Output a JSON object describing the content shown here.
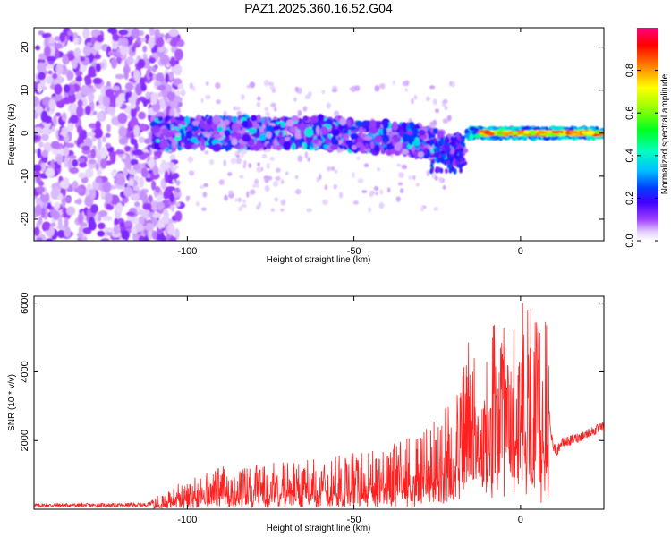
{
  "chart_data": [
    {
      "type": "heatmap",
      "title": "PAZ1.2025.360.16.52.G04",
      "xlabel": "Height of straight line (km)",
      "ylabel": "Frequency (Hz)",
      "xlim": [
        -146,
        25
      ],
      "ylim": [
        -25,
        24.5
      ],
      "xticks": [
        -100,
        -50,
        0
      ],
      "xtick_labels": [
        "-100",
        "-50",
        "0"
      ],
      "yticks": [
        -20,
        -10,
        0,
        10,
        20
      ],
      "ytick_labels": [
        "-20",
        "-10",
        "0",
        "10",
        "20"
      ],
      "grid": false,
      "colorbar": {
        "label": "Normalized spectral amplitude",
        "range": [
          0,
          1
        ],
        "ticks": [
          0.0,
          0.2,
          0.4,
          0.6,
          0.8
        ],
        "tick_labels": [
          "0.0",
          "0.2",
          "0.4",
          "0.6",
          "0.8"
        ],
        "colormap": [
          "#ffffff",
          "#d6b8ff",
          "#8000ff",
          "#0000ff",
          "#00e0ff",
          "#00ff40",
          "#ffff00",
          "#ff8000",
          "#ff0000",
          "#ff0080"
        ]
      },
      "regions": [
        {
          "name": "noise",
          "x_range": [
            -146,
            -105
          ],
          "freq_range": [
            -25,
            24
          ],
          "amplitude": 0.05
        },
        {
          "name": "ionospheric",
          "x_range": [
            -110,
            -17
          ],
          "freq_center": [
            0,
            -4
          ],
          "amplitude": 0.25
        },
        {
          "name": "troposphere-strong",
          "x_range": [
            -15,
            25
          ],
          "freq_center": [
            0,
            0
          ],
          "amplitude": 0.9
        }
      ]
    },
    {
      "type": "line",
      "title": "",
      "xlabel": "Height of straight line (km)",
      "ylabel": "SNR (10 * v/v)",
      "xlim": [
        -146,
        25
      ],
      "ylim": [
        0,
        6200
      ],
      "xticks": [
        -100,
        -50,
        0
      ],
      "xtick_labels": [
        "-100",
        "-50",
        "0"
      ],
      "yticks": [
        2000,
        4000,
        6000
      ],
      "ytick_labels": [
        "2000",
        "4000",
        "6000"
      ],
      "grid": false,
      "series": [
        {
          "name": "SNR",
          "color": "#ff2020",
          "x": [
            -146,
            -140,
            -130,
            -120,
            -112,
            -108,
            -104,
            -100,
            -95,
            -90,
            -85,
            -80,
            -75,
            -70,
            -65,
            -60,
            -55,
            -50,
            -45,
            -40,
            -35,
            -30,
            -25,
            -22,
            -20,
            -18,
            -16,
            -15,
            -14,
            -13,
            -12,
            -11,
            -10,
            -9,
            -8,
            -6,
            -5,
            -4,
            -3,
            -2,
            -1,
            0,
            2,
            4,
            6,
            8,
            9,
            10,
            11,
            12,
            15,
            20,
            25
          ],
          "values": [
            50,
            60,
            55,
            60,
            70,
            300,
            450,
            550,
            650,
            800,
            750,
            800,
            850,
            900,
            900,
            950,
            1000,
            1050,
            1100,
            1200,
            1300,
            1400,
            1700,
            1900,
            2300,
            2600,
            3000,
            3500,
            2800,
            1400,
            1600,
            2400,
            3400,
            3000,
            3500,
            3600,
            3300,
            3300,
            3500,
            3600,
            3700,
            3800,
            3900,
            3800,
            3600,
            3700,
            2200,
            1800,
            1700,
            1900,
            2000,
            2200,
            2400
          ]
        }
      ]
    }
  ]
}
